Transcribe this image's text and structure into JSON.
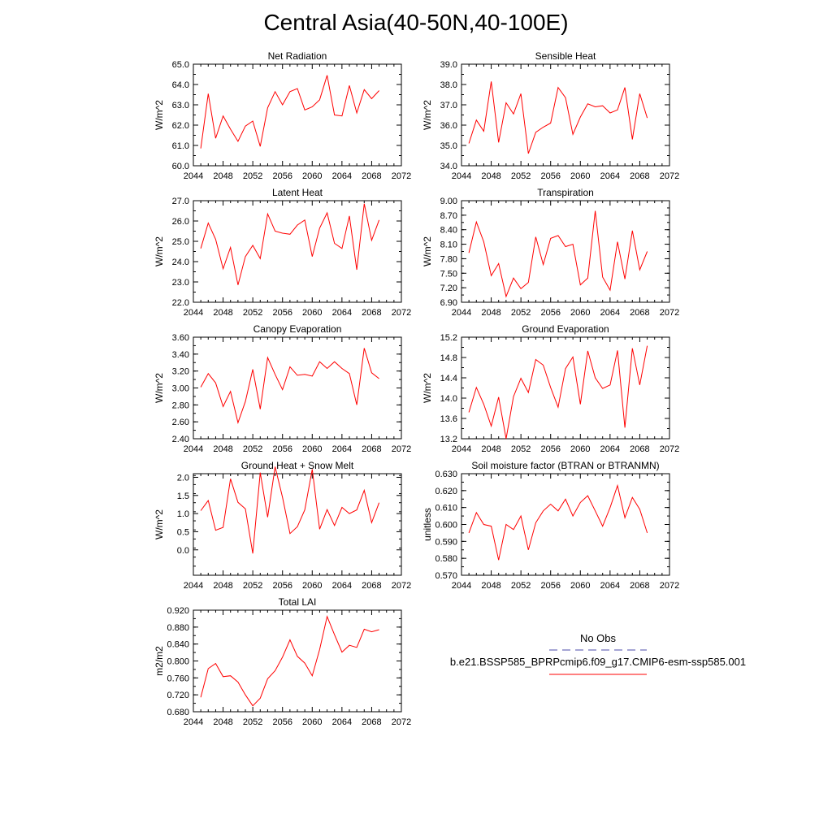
{
  "title": "Central Asia(40-50N,40-100E)",
  "x_ticks": [
    "2044",
    "2048",
    "2052",
    "2056",
    "2060",
    "2064",
    "2068",
    "2072"
  ],
  "years": [
    2045,
    2046,
    2047,
    2048,
    2049,
    2050,
    2051,
    2052,
    2053,
    2054,
    2055,
    2056,
    2057,
    2058,
    2059,
    2060,
    2061,
    2062,
    2063,
    2064,
    2065,
    2066,
    2067,
    2068,
    2069
  ],
  "line_color": "#ff0000",
  "chart_data": [
    {
      "type": "line",
      "title": "Net Radiation",
      "ylabel": "W/m^2",
      "xlim": [
        2044,
        2072
      ],
      "ylim": [
        60.0,
        65.0
      ],
      "yticks": [
        "60.0",
        "61.0",
        "62.0",
        "63.0",
        "64.0",
        "65.0"
      ],
      "values": [
        60.85,
        63.55,
        61.35,
        62.45,
        61.8,
        61.2,
        61.95,
        62.2,
        60.95,
        62.85,
        63.65,
        63.0,
        63.65,
        63.8,
        62.75,
        62.9,
        63.25,
        64.45,
        62.5,
        62.45,
        63.95,
        62.6,
        63.75,
        63.3,
        63.7
      ]
    },
    {
      "type": "line",
      "title": "Sensible Heat",
      "ylabel": "W/m^2",
      "xlim": [
        2044,
        2072
      ],
      "ylim": [
        34.0,
        39.0
      ],
      "yticks": [
        "34.0",
        "35.0",
        "36.0",
        "37.0",
        "38.0",
        "39.0"
      ],
      "values": [
        35.1,
        36.25,
        35.7,
        38.15,
        35.15,
        37.1,
        36.55,
        37.55,
        34.6,
        35.65,
        35.9,
        36.1,
        37.85,
        37.35,
        35.55,
        36.4,
        37.05,
        36.9,
        36.95,
        36.6,
        36.75,
        37.85,
        35.3,
        37.55,
        36.35
      ]
    },
    {
      "type": "line",
      "title": "Latent Heat",
      "ylabel": "W/m^2",
      "xlim": [
        2044,
        2072
      ],
      "ylim": [
        22.0,
        27.0
      ],
      "yticks": [
        "22.0",
        "23.0",
        "24.0",
        "25.0",
        "26.0",
        "27.0"
      ],
      "values": [
        24.65,
        25.9,
        25.1,
        23.65,
        24.7,
        22.85,
        24.25,
        24.8,
        24.15,
        26.35,
        25.5,
        25.4,
        25.35,
        25.8,
        26.05,
        24.25,
        25.65,
        26.4,
        24.9,
        24.65,
        26.25,
        23.6,
        26.85,
        25.05,
        26.05
      ]
    },
    {
      "type": "line",
      "title": "Transpiration",
      "ylabel": "W/m^2",
      "xlim": [
        2044,
        2072
      ],
      "ylim": [
        6.9,
        9.0
      ],
      "yticks": [
        "6.90",
        "7.20",
        "7.50",
        "7.80",
        "8.10",
        "8.40",
        "8.70",
        "9.00"
      ],
      "values": [
        7.92,
        8.56,
        8.15,
        7.45,
        7.7,
        7.02,
        7.4,
        7.18,
        7.31,
        8.25,
        7.68,
        8.22,
        8.28,
        8.05,
        8.1,
        7.26,
        7.4,
        8.79,
        7.42,
        7.15,
        8.15,
        7.38,
        8.38,
        7.57,
        7.95
      ]
    },
    {
      "type": "line",
      "title": "Canopy Evaporation",
      "ylabel": "W/m^2",
      "xlim": [
        2044,
        2072
      ],
      "ylim": [
        2.4,
        3.6
      ],
      "yticks": [
        "2.40",
        "2.60",
        "2.80",
        "3.00",
        "3.20",
        "3.40",
        "3.60"
      ],
      "values": [
        3.01,
        3.17,
        3.06,
        2.78,
        2.96,
        2.59,
        2.84,
        3.22,
        2.75,
        3.36,
        3.16,
        2.98,
        3.25,
        3.15,
        3.16,
        3.14,
        3.31,
        3.23,
        3.31,
        3.23,
        3.17,
        2.8,
        3.47,
        3.18,
        3.11
      ]
    },
    {
      "type": "line",
      "title": "Ground Evaporation",
      "ylabel": "W/m^2",
      "xlim": [
        2044,
        2072
      ],
      "ylim": [
        13.2,
        15.2
      ],
      "yticks": [
        "13.2",
        "13.6",
        "14.0",
        "14.4",
        "14.8",
        "15.2"
      ],
      "values": [
        13.72,
        14.21,
        13.88,
        13.45,
        14.02,
        13.2,
        14.03,
        14.39,
        14.11,
        14.76,
        14.65,
        14.21,
        13.82,
        14.58,
        14.81,
        13.88,
        14.93,
        14.4,
        14.19,
        14.26,
        14.94,
        13.42,
        14.98,
        14.26,
        15.03
      ]
    },
    {
      "type": "line",
      "title": "Ground Heat + Snow Melt",
      "ylabel": "W/m^2",
      "xlim": [
        2044,
        2072
      ],
      "ylim": [
        -0.7,
        2.1
      ],
      "yticks": [
        "0.0",
        "0.5",
        "1.0",
        "1.5",
        "2.0"
      ],
      "values": [
        1.08,
        1.36,
        0.54,
        0.62,
        1.96,
        1.31,
        1.13,
        -0.1,
        2.13,
        0.9,
        2.29,
        1.45,
        0.45,
        0.64,
        1.1,
        2.22,
        0.57,
        1.11,
        0.67,
        1.17,
        1.0,
        1.1,
        1.64,
        0.75,
        1.3
      ]
    },
    {
      "type": "line",
      "title": "Soil moisture factor (BTRAN or BTRANMN)",
      "ylabel": "unitless",
      "xlim": [
        2044,
        2072
      ],
      "ylim": [
        0.57,
        0.63
      ],
      "yticks": [
        "0.570",
        "0.580",
        "0.590",
        "0.600",
        "0.610",
        "0.620",
        "0.630"
      ],
      "values": [
        0.595,
        0.607,
        0.6,
        0.599,
        0.579,
        0.6,
        0.597,
        0.605,
        0.585,
        0.601,
        0.608,
        0.612,
        0.608,
        0.615,
        0.605,
        0.613,
        0.617,
        0.608,
        0.599,
        0.61,
        0.623,
        0.604,
        0.616,
        0.609,
        0.595
      ]
    },
    {
      "type": "line",
      "title": "Total LAI",
      "ylabel": "m2/m2",
      "xlim": [
        2044,
        2072
      ],
      "ylim": [
        0.68,
        0.92
      ],
      "yticks": [
        "0.680",
        "0.720",
        "0.760",
        "0.800",
        "0.840",
        "0.880",
        "0.920"
      ],
      "values": [
        0.714,
        0.782,
        0.794,
        0.763,
        0.765,
        0.75,
        0.72,
        0.694,
        0.712,
        0.758,
        0.777,
        0.809,
        0.85,
        0.811,
        0.795,
        0.765,
        0.827,
        0.905,
        0.862,
        0.821,
        0.837,
        0.832,
        0.875,
        0.869,
        0.874
      ]
    }
  ],
  "legend": {
    "items": [
      {
        "label": "No Obs",
        "color": "#4a4aa8",
        "dash": "dashed"
      },
      {
        "label": "b.e21.BSSP585_BPRPcmip6.f09_g17.CMIP6-esm-ssp585.001",
        "color": "#ff0000",
        "dash": "solid"
      }
    ]
  }
}
